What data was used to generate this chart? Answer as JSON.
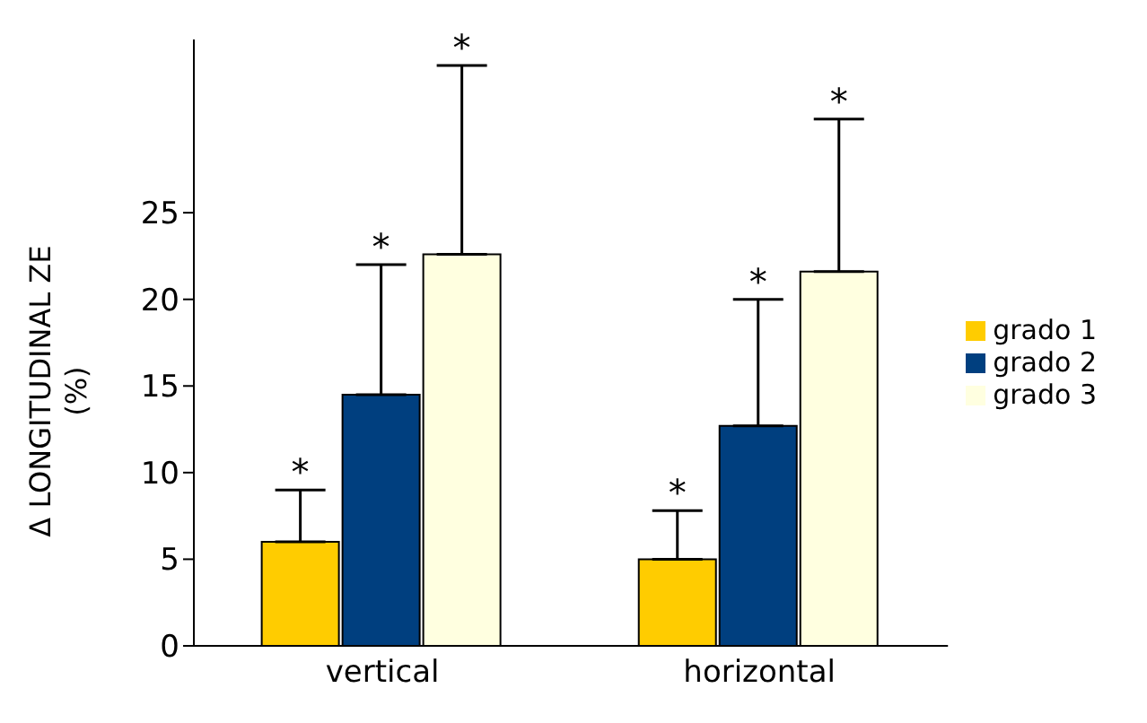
{
  "chart_data": {
    "type": "bar",
    "ylabel": "Δ LONGITUDINAL ZE\n(%)",
    "categories": [
      "vertical",
      "horizontal"
    ],
    "series": [
      {
        "name": "grado 1",
        "color": "#ffcc00",
        "values": [
          6,
          5
        ],
        "errors": [
          [
            6,
            9
          ],
          [
            5,
            7.8
          ]
        ]
      },
      {
        "name": "grado 2",
        "color": "#003f7f",
        "values": [
          14.5,
          12.7
        ],
        "errors": [
          [
            14.5,
            22
          ],
          [
            12.7,
            20
          ]
        ]
      },
      {
        "name": "grado 3",
        "color": "#ffffe0",
        "values": [
          22.6,
          21.6
        ],
        "errors": [
          [
            22.6,
            33.5
          ],
          [
            21.6,
            30.4
          ]
        ]
      }
    ],
    "ylim": [
      0,
      35
    ],
    "yticks": [
      0,
      5,
      10,
      15,
      20,
      25
    ],
    "legend": "right",
    "grid": false,
    "annotations": [
      "*",
      "*",
      "*",
      "*",
      "*",
      "*"
    ]
  }
}
